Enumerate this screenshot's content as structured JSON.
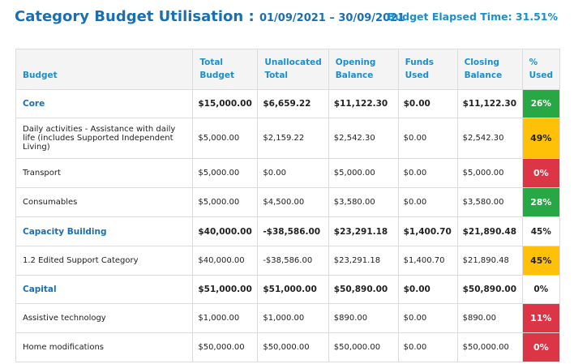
{
  "header": {
    "title": "Category Budget Utilisation : ",
    "date_range": "01/09/2021 – 30/09/2021",
    "elapsed": "Budget Elapsed Time: 31.51%"
  },
  "table": {
    "columns": [
      "Budget",
      "Total Budget",
      "Unallocated Total",
      "Opening Balance",
      "Funds Used",
      "Closing Balance",
      "% Used"
    ],
    "rows": [
      {
        "type": "cat",
        "name": "Core",
        "total": "$15,000.00",
        "unallocated": "$6,659.22",
        "opening": "$11,122.30",
        "funds": "$0.00",
        "closing": "$11,122.30",
        "pct": "26%",
        "pct_color": "green"
      },
      {
        "type": "sub",
        "name": "Daily activities - Assistance with daily life (includes Supported Independent Living)",
        "total": "$5,000.00",
        "unallocated": "$2,159.22",
        "opening": "$2,542.30",
        "funds": "$0.00",
        "closing": "$2,542.30",
        "pct": "49%",
        "pct_color": "yellow"
      },
      {
        "type": "sub",
        "name": "Transport",
        "total": "$5,000.00",
        "unallocated": "$0.00",
        "opening": "$5,000.00",
        "funds": "$0.00",
        "closing": "$5,000.00",
        "pct": "0%",
        "pct_color": "red"
      },
      {
        "type": "sub",
        "name": "Consumables",
        "total": "$5,000.00",
        "unallocated": "$4,500.00",
        "opening": "$3,580.00",
        "funds": "$0.00",
        "closing": "$3,580.00",
        "pct": "28%",
        "pct_color": "green"
      },
      {
        "type": "cat",
        "name": "Capacity Building",
        "total": "$40,000.00",
        "unallocated": "-$38,586.00",
        "opening": "$23,291.18",
        "funds": "$1,400.70",
        "closing": "$21,890.48",
        "pct": "45%",
        "pct_color": "plain"
      },
      {
        "type": "sub",
        "name": "1.2 Edited Support Category",
        "total": "$40,000.00",
        "unallocated": "-$38,586.00",
        "opening": "$23,291.18",
        "funds": "$1,400.70",
        "closing": "$21,890.48",
        "pct": "45%",
        "pct_color": "yellow"
      },
      {
        "type": "cat",
        "name": "Capital",
        "total": "$51,000.00",
        "unallocated": "$51,000.00",
        "opening": "$50,890.00",
        "funds": "$0.00",
        "closing": "$50,890.00",
        "pct": "0%",
        "pct_color": "plain"
      },
      {
        "type": "sub",
        "name": "Assistive technology",
        "total": "$1,000.00",
        "unallocated": "$1,000.00",
        "opening": "$890.00",
        "funds": "$0.00",
        "closing": "$890.00",
        "pct": "11%",
        "pct_color": "red"
      },
      {
        "type": "sub",
        "name": "Home modifications",
        "total": "$50,000.00",
        "unallocated": "$50,000.00",
        "opening": "$50,000.00",
        "funds": "$0.00",
        "closing": "$50,000.00",
        "pct": "0%",
        "pct_color": "red"
      }
    ]
  }
}
